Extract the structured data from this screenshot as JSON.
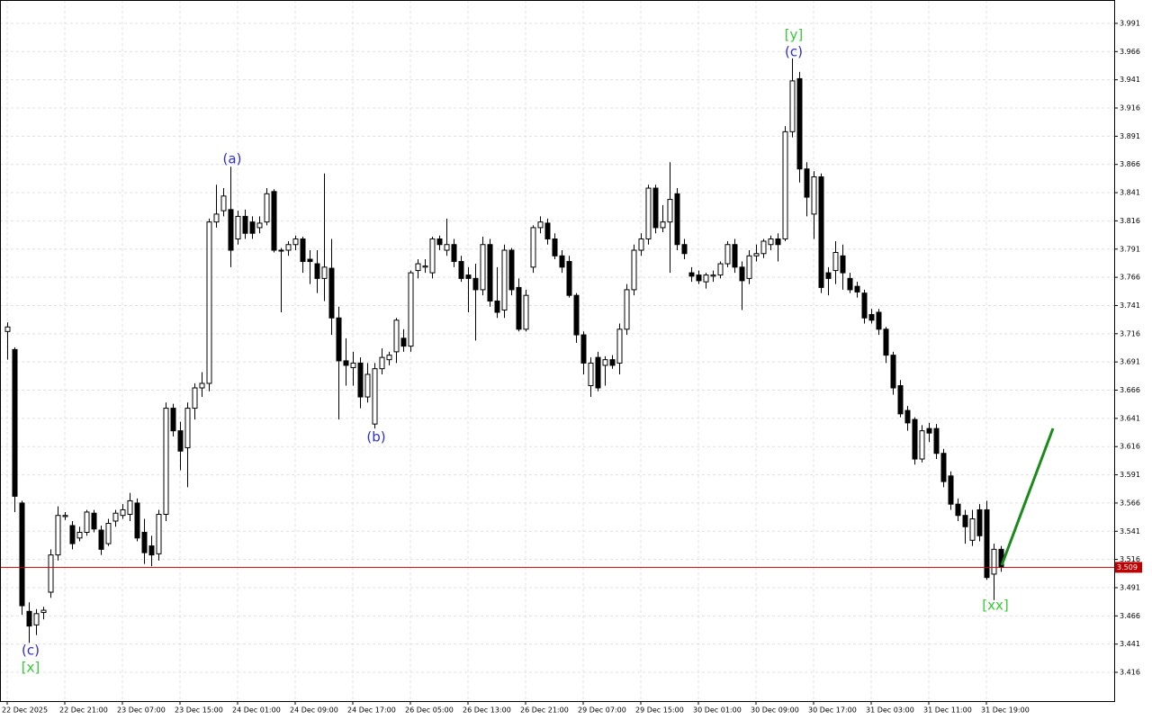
{
  "chart_data": {
    "type": "candlestick",
    "ylim": [
      3.3905,
      4.0117
    ],
    "yticks": [
      3.416,
      3.441,
      3.466,
      3.491,
      3.516,
      3.541,
      3.566,
      3.591,
      3.616,
      3.641,
      3.666,
      3.691,
      3.716,
      3.741,
      3.766,
      3.791,
      3.816,
      3.841,
      3.866,
      3.891,
      3.916,
      3.941,
      3.966,
      3.991
    ],
    "grid": true,
    "bull_color": "#ffffff",
    "bear_color": "#000000",
    "current_price": 3.509,
    "current_price_color": "#c00000",
    "categories": [
      "22 Dec 2025",
      null,
      null,
      null,
      null,
      null,
      null,
      null,
      "22 Dec 21:00",
      null,
      null,
      null,
      null,
      null,
      null,
      null,
      "23 Dec 07:00",
      null,
      null,
      null,
      null,
      null,
      null,
      null,
      "23 Dec 15:00",
      null,
      null,
      null,
      null,
      null,
      null,
      null,
      "24 Dec 01:00",
      null,
      null,
      null,
      null,
      null,
      null,
      null,
      "24 Dec 09:00",
      null,
      null,
      null,
      null,
      null,
      null,
      null,
      "24 Dec 17:00",
      null,
      null,
      null,
      null,
      null,
      null,
      null,
      "26 Dec 05:00",
      null,
      null,
      null,
      null,
      null,
      null,
      null,
      "26 Dec 13:00",
      null,
      null,
      null,
      null,
      null,
      null,
      null,
      "26 Dec 21:00",
      null,
      null,
      null,
      null,
      null,
      null,
      null,
      "29 Dec 07:00",
      null,
      null,
      null,
      null,
      null,
      null,
      null,
      "29 Dec 15:00",
      null,
      null,
      null,
      null,
      null,
      null,
      null,
      "30 Dec 01:00",
      null,
      null,
      null,
      null,
      null,
      null,
      null,
      "30 Dec 09:00",
      null,
      null,
      null,
      null,
      null,
      null,
      null,
      "30 Dec 17:00",
      null,
      null,
      null,
      null,
      null,
      null,
      null,
      "31 Dec 03:00",
      null,
      null,
      null,
      null,
      null,
      null,
      null,
      "31 Dec 11:00",
      null,
      null,
      null,
      null,
      null,
      null,
      null,
      "31 Dec 19:00",
      null,
      null
    ],
    "ohlc": [
      [
        3.718,
        3.726,
        3.693,
        3.722
      ],
      [
        3.702,
        3.704,
        3.558,
        3.572
      ],
      [
        3.566,
        3.568,
        3.467,
        3.475
      ],
      [
        3.47,
        3.478,
        3.442,
        3.457
      ],
      [
        3.458,
        3.472,
        3.449,
        3.468
      ],
      [
        3.469,
        3.474,
        3.463,
        3.471
      ],
      [
        3.487,
        3.525,
        3.482,
        3.52
      ],
      [
        3.52,
        3.563,
        3.515,
        3.555
      ],
      [
        3.554,
        3.558,
        3.551,
        3.555
      ],
      [
        3.546,
        3.55,
        3.525,
        3.53
      ],
      [
        3.535,
        3.545,
        3.532,
        3.54
      ],
      [
        3.54,
        3.56,
        3.537,
        3.558
      ],
      [
        3.557,
        3.56,
        3.54,
        3.543
      ],
      [
        3.542,
        3.546,
        3.52,
        3.525
      ],
      [
        3.53,
        3.552,
        3.528,
        3.548
      ],
      [
        3.55,
        3.56,
        3.545,
        3.557
      ],
      [
        3.555,
        3.565,
        3.552,
        3.56
      ],
      [
        3.556,
        3.575,
        3.55,
        3.568
      ],
      [
        3.566,
        3.57,
        3.532,
        3.535
      ],
      [
        3.54,
        3.552,
        3.512,
        3.522
      ],
      [
        3.528,
        3.537,
        3.51,
        3.52
      ],
      [
        3.521,
        3.56,
        3.515,
        3.556
      ],
      [
        3.556,
        3.655,
        3.55,
        3.65
      ],
      [
        3.65,
        3.654,
        3.625,
        3.63
      ],
      [
        3.63,
        3.638,
        3.595,
        3.612
      ],
      [
        3.615,
        3.655,
        3.58,
        3.65
      ],
      [
        3.65,
        3.672,
        3.64,
        3.668
      ],
      [
        3.668,
        3.682,
        3.66,
        3.672
      ],
      [
        3.672,
        3.818,
        3.665,
        3.815
      ],
      [
        3.815,
        3.848,
        3.81,
        3.822
      ],
      [
        3.825,
        3.845,
        3.82,
        3.838
      ],
      [
        3.826,
        3.864,
        3.775,
        3.79
      ],
      [
        3.8,
        3.825,
        3.795,
        3.82
      ],
      [
        3.82,
        3.826,
        3.8,
        3.805
      ],
      [
        3.815,
        3.82,
        3.8,
        3.805
      ],
      [
        3.81,
        3.82,
        3.805,
        3.814
      ],
      [
        3.815,
        3.845,
        3.812,
        3.84
      ],
      [
        3.842,
        3.844,
        3.788,
        3.79
      ],
      [
        3.79,
        3.792,
        3.735,
        3.79
      ],
      [
        3.79,
        3.798,
        3.785,
        3.795
      ],
      [
        3.795,
        3.803,
        3.79,
        3.8
      ],
      [
        3.8,
        3.802,
        3.77,
        3.78
      ],
      [
        3.782,
        3.79,
        3.76,
        3.78
      ],
      [
        3.778,
        3.79,
        3.752,
        3.765
      ],
      [
        3.765,
        3.858,
        3.745,
        3.775
      ],
      [
        3.774,
        3.8,
        3.715,
        3.73
      ],
      [
        3.73,
        3.74,
        3.64,
        3.692
      ],
      [
        3.692,
        3.712,
        3.67,
        3.688
      ],
      [
        3.686,
        3.7,
        3.67,
        3.69
      ],
      [
        3.69,
        3.695,
        3.65,
        3.66
      ],
      [
        3.66,
        3.69,
        3.655,
        3.68
      ],
      [
        3.636,
        3.69,
        3.632,
        3.685
      ],
      [
        3.685,
        3.703,
        3.68,
        3.695
      ],
      [
        3.693,
        3.7,
        3.688,
        3.697
      ],
      [
        3.7,
        3.73,
        3.69,
        3.728
      ],
      [
        3.712,
        3.72,
        3.7,
        3.705
      ],
      [
        3.705,
        3.772,
        3.7,
        3.77
      ],
      [
        3.772,
        3.782,
        3.765,
        3.778
      ],
      [
        3.775,
        3.782,
        3.77,
        3.776
      ],
      [
        3.77,
        3.802,
        3.765,
        3.8
      ],
      [
        3.8,
        3.803,
        3.79,
        3.795
      ],
      [
        3.79,
        3.818,
        3.785,
        3.795
      ],
      [
        3.795,
        3.8,
        3.775,
        3.78
      ],
      [
        3.78,
        3.785,
        3.762,
        3.765
      ],
      [
        3.768,
        3.775,
        3.735,
        3.765
      ],
      [
        3.765,
        3.778,
        3.71,
        3.755
      ],
      [
        3.755,
        3.802,
        3.75,
        3.795
      ],
      [
        3.795,
        3.8,
        3.74,
        3.745
      ],
      [
        3.745,
        3.775,
        3.73,
        3.735
      ],
      [
        3.737,
        3.795,
        3.73,
        3.79
      ],
      [
        3.79,
        3.792,
        3.75,
        3.755
      ],
      [
        3.757,
        3.765,
        3.718,
        3.72
      ],
      [
        3.72,
        3.755,
        3.718,
        3.75
      ],
      [
        3.775,
        3.812,
        3.77,
        3.81
      ],
      [
        3.81,
        3.82,
        3.805,
        3.815
      ],
      [
        3.814,
        3.818,
        3.795,
        3.8
      ],
      [
        3.8,
        3.805,
        3.782,
        3.785
      ],
      [
        3.785,
        3.79,
        3.77,
        3.775
      ],
      [
        3.78,
        3.785,
        3.748,
        3.75
      ],
      [
        3.75,
        3.752,
        3.708,
        3.715
      ],
      [
        3.715,
        3.718,
        3.68,
        3.69
      ],
      [
        3.67,
        3.695,
        3.66,
        3.69
      ],
      [
        3.695,
        3.7,
        3.665,
        3.668
      ],
      [
        3.688,
        3.696,
        3.67,
        3.693
      ],
      [
        3.693,
        3.697,
        3.685,
        3.688
      ],
      [
        3.69,
        3.725,
        3.68,
        3.72
      ],
      [
        3.72,
        3.76,
        3.715,
        3.755
      ],
      [
        3.755,
        3.795,
        3.75,
        3.79
      ],
      [
        3.79,
        3.805,
        3.785,
        3.8
      ],
      [
        3.8,
        3.848,
        3.795,
        3.845
      ],
      [
        3.845,
        3.848,
        3.805,
        3.81
      ],
      [
        3.81,
        3.83,
        3.806,
        3.815
      ],
      [
        3.815,
        3.868,
        3.77,
        3.835
      ],
      [
        3.84,
        3.845,
        3.79,
        3.795
      ],
      [
        3.795,
        3.8,
        3.782,
        3.787
      ],
      [
        3.77,
        3.775,
        3.762,
        3.767
      ],
      [
        3.768,
        3.772,
        3.76,
        3.763
      ],
      [
        3.762,
        3.77,
        3.756,
        3.768
      ],
      [
        3.767,
        3.772,
        3.762,
        3.768
      ],
      [
        3.768,
        3.78,
        3.765,
        3.778
      ],
      [
        3.778,
        3.798,
        3.775,
        3.795
      ],
      [
        3.795,
        3.8,
        3.77,
        3.775
      ],
      [
        3.775,
        3.78,
        3.737,
        3.763
      ],
      [
        3.765,
        3.79,
        3.76,
        3.785
      ],
      [
        3.785,
        3.795,
        3.78,
        3.787
      ],
      [
        3.787,
        3.8,
        3.783,
        3.798
      ],
      [
        3.795,
        3.803,
        3.79,
        3.8
      ],
      [
        3.8,
        3.805,
        3.78,
        3.795
      ],
      [
        3.8,
        3.9,
        3.798,
        3.895
      ],
      [
        3.895,
        3.96,
        3.89,
        3.94
      ],
      [
        3.942,
        3.948,
        3.85,
        3.862
      ],
      [
        3.862,
        3.868,
        3.82,
        3.837
      ],
      [
        3.822,
        3.86,
        3.8,
        3.855
      ],
      [
        3.855,
        3.858,
        3.752,
        3.757
      ],
      [
        3.77,
        3.775,
        3.75,
        3.765
      ],
      [
        3.772,
        3.798,
        3.76,
        3.788
      ],
      [
        3.785,
        3.795,
        3.755,
        3.77
      ],
      [
        3.765,
        3.77,
        3.752,
        3.755
      ],
      [
        3.758,
        3.762,
        3.748,
        3.753
      ],
      [
        3.752,
        3.755,
        3.725,
        3.73
      ],
      [
        3.733,
        3.738,
        3.725,
        3.728
      ],
      [
        3.735,
        3.738,
        3.715,
        3.72
      ],
      [
        3.72,
        3.722,
        3.69,
        3.697
      ],
      [
        3.697,
        3.7,
        3.662,
        3.668
      ],
      [
        3.67,
        3.675,
        3.642,
        3.645
      ],
      [
        3.648,
        3.652,
        3.63,
        3.637
      ],
      [
        3.64,
        3.642,
        3.6,
        3.605
      ],
      [
        3.605,
        3.635,
        3.602,
        3.63
      ],
      [
        3.632,
        3.637,
        3.62,
        3.628
      ],
      [
        3.632,
        3.636,
        3.605,
        3.61
      ],
      [
        3.61,
        3.614,
        3.58,
        3.585
      ],
      [
        3.59,
        3.594,
        3.56,
        3.565
      ],
      [
        3.565,
        3.57,
        3.55,
        3.555
      ],
      [
        3.555,
        3.56,
        3.53,
        3.545
      ],
      [
        3.533,
        3.56,
        3.528,
        3.552
      ],
      [
        3.56,
        3.565,
        3.532,
        3.537
      ],
      [
        3.56,
        3.568,
        3.498,
        3.5
      ],
      [
        3.503,
        3.53,
        3.48,
        3.525
      ],
      [
        3.525,
        3.528,
        3.505,
        3.509
      ]
    ],
    "annotations": [
      {
        "text": "(c)",
        "color": "#2b2bd9"
      },
      {
        "text": "[x]",
        "color": "#33cc33"
      },
      {
        "text": "(a)",
        "color": "#2b2bd9"
      },
      {
        "text": "(b)",
        "color": "#2b2bd9"
      },
      {
        "text": "[y]",
        "color": "#33cc33"
      },
      {
        "text": "(c)",
        "color": "#2b2bd9"
      },
      {
        "text": "[xx]",
        "color": "#33cc33"
      }
    ]
  }
}
